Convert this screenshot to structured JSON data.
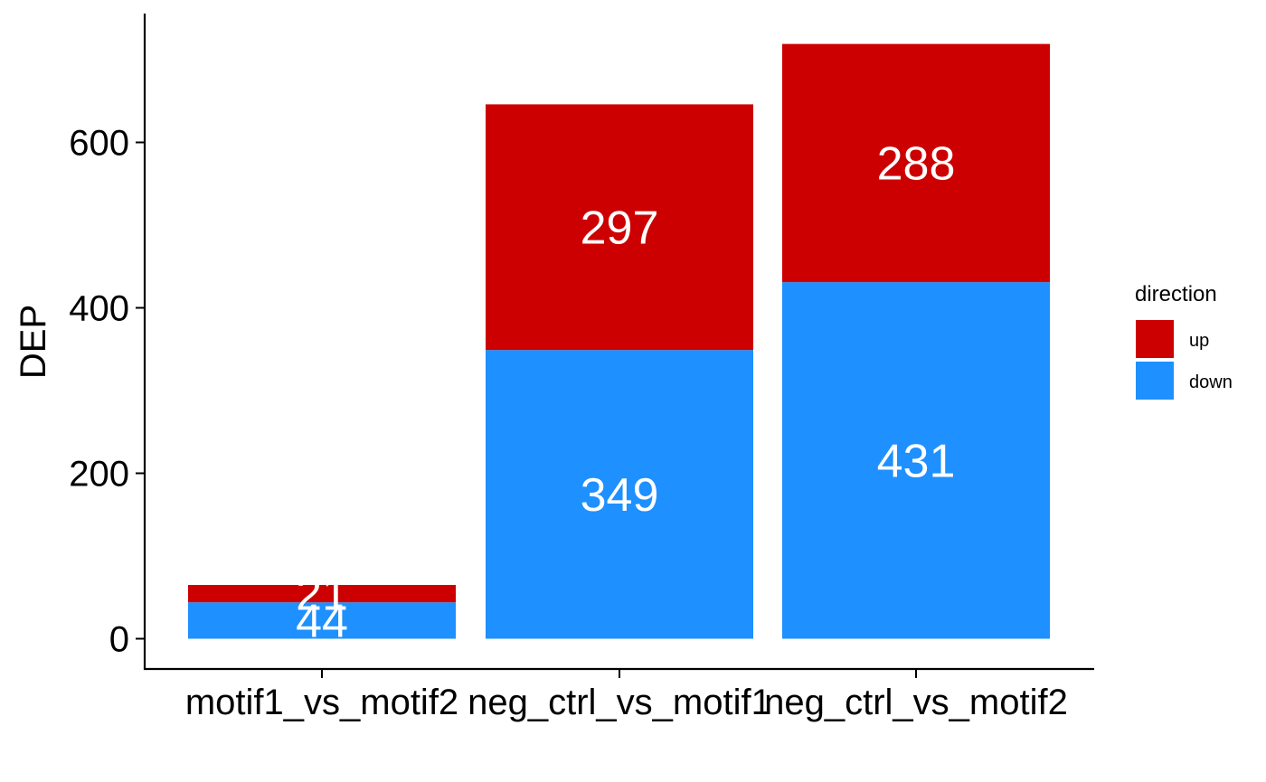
{
  "chart_data": {
    "type": "bar",
    "stacked": true,
    "title": "",
    "xlabel": "",
    "ylabel": "DEP",
    "ylim": [
      0,
      720
    ],
    "yticks": [
      0,
      200,
      400,
      600
    ],
    "grid": false,
    "legend_position": "right",
    "legend_title": "direction",
    "categories": [
      "motif1_vs_motif2",
      "neg_ctrl_vs_motif1",
      "neg_ctrl_vs_motif2"
    ],
    "series": [
      {
        "name": "down",
        "color": "#1E90FF",
        "values": [
          44,
          349,
          431
        ]
      },
      {
        "name": "up",
        "color": "#CC0000",
        "values": [
          21,
          297,
          288
        ]
      }
    ],
    "legend_order": [
      "up",
      "down"
    ]
  }
}
